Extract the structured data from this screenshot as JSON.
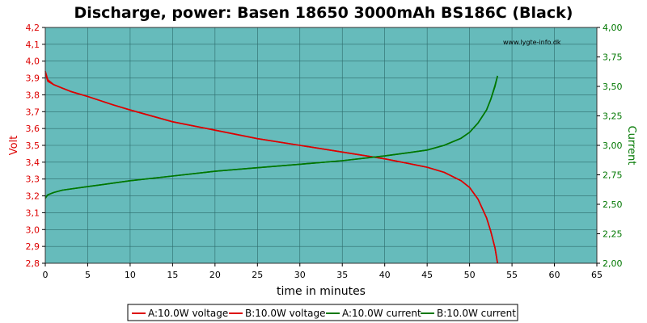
{
  "chart_data": {
    "type": "line",
    "title": "Discharge, power: Basen 18650 3000mAh BS186C (Black)",
    "watermark": "www.lygte-info.dk",
    "xlabel": "time in minutes",
    "ylabel_left": "Volt",
    "ylabel_right": "Current",
    "xlim": [
      0,
      65
    ],
    "ylim_left": [
      2.8,
      4.2
    ],
    "ylim_right": [
      2.0,
      4.0
    ],
    "grid": true,
    "legend_position": "bottom",
    "x_ticks": [
      "0",
      "5",
      "10",
      "15",
      "20",
      "25",
      "30",
      "35",
      "40",
      "45",
      "50",
      "55",
      "60",
      "65"
    ],
    "y_left_ticks": [
      "2,8",
      "2,9",
      "3,0",
      "3,1",
      "3,2",
      "3,3",
      "3,4",
      "3,5",
      "3,6",
      "3,7",
      "3,8",
      "3,9",
      "4,0",
      "4,1",
      "4,2"
    ],
    "y_right_ticks": [
      "2,00",
      "2,25",
      "2,50",
      "2,75",
      "3,00",
      "3,25",
      "3,50",
      "3,75",
      "4,00"
    ],
    "colors": {
      "plot_bg": "#66bbbb",
      "voltage": "#dd0000",
      "current": "#007700",
      "grid": "#2d6b6b"
    },
    "series": [
      {
        "name": "A:10.0W voltage",
        "axis": "left",
        "color": "#dd0000",
        "x": [
          0,
          0.3,
          1,
          2,
          3,
          5,
          8,
          10,
          15,
          20,
          25,
          30,
          35,
          40,
          43,
          45,
          47,
          49,
          50,
          51,
          52,
          52.5,
          53,
          53.3
        ],
        "y": [
          3.94,
          3.89,
          3.86,
          3.84,
          3.82,
          3.79,
          3.74,
          3.71,
          3.64,
          3.59,
          3.54,
          3.5,
          3.46,
          3.42,
          3.39,
          3.37,
          3.34,
          3.29,
          3.25,
          3.18,
          3.07,
          2.99,
          2.89,
          2.8
        ]
      },
      {
        "name": "B:10.0W voltage",
        "axis": "left",
        "color": "#dd0000",
        "x": [
          0,
          0.3,
          1,
          2,
          3,
          5,
          8,
          10,
          15,
          20,
          25,
          30,
          35,
          40,
          43,
          45,
          47,
          49,
          50,
          51,
          52,
          52.5,
          53,
          53.3
        ],
        "y": [
          3.93,
          3.88,
          3.86,
          3.84,
          3.82,
          3.79,
          3.74,
          3.71,
          3.64,
          3.59,
          3.54,
          3.5,
          3.46,
          3.42,
          3.39,
          3.37,
          3.34,
          3.29,
          3.25,
          3.18,
          3.07,
          2.99,
          2.89,
          2.8
        ]
      },
      {
        "name": "A:10.0W current",
        "axis": "right",
        "color": "#007700",
        "x": [
          0,
          0.3,
          1,
          2,
          5,
          10,
          15,
          20,
          25,
          30,
          35,
          40,
          43,
          45,
          47,
          49,
          50,
          51,
          52,
          52.5,
          53,
          53.3
        ],
        "y": [
          2.55,
          2.58,
          2.6,
          2.62,
          2.65,
          2.7,
          2.74,
          2.78,
          2.81,
          2.84,
          2.87,
          2.91,
          2.94,
          2.96,
          3.0,
          3.06,
          3.11,
          3.19,
          3.3,
          3.39,
          3.5,
          3.59
        ]
      },
      {
        "name": "B:10.0W current",
        "axis": "right",
        "color": "#007700",
        "x": [
          0,
          0.3,
          1,
          2,
          5,
          10,
          15,
          20,
          25,
          30,
          35,
          40,
          43,
          45,
          47,
          49,
          50,
          51,
          52,
          52.5,
          53,
          53.3
        ],
        "y": [
          2.56,
          2.58,
          2.6,
          2.62,
          2.65,
          2.7,
          2.74,
          2.78,
          2.81,
          2.84,
          2.87,
          2.91,
          2.94,
          2.96,
          3.0,
          3.06,
          3.11,
          3.19,
          3.3,
          3.39,
          3.51,
          3.59
        ]
      }
    ]
  }
}
